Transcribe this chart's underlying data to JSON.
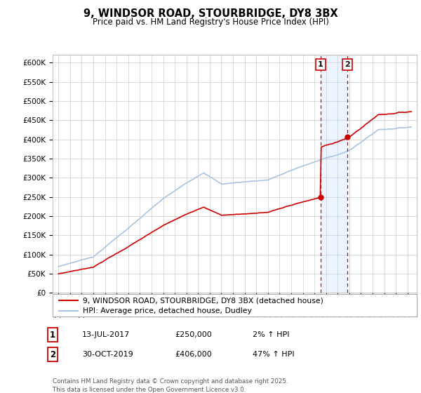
{
  "title": "9, WINDSOR ROAD, STOURBRIDGE, DY8 3BX",
  "subtitle": "Price paid vs. HM Land Registry's House Price Index (HPI)",
  "ylim": [
    0,
    620000
  ],
  "yticks": [
    0,
    50000,
    100000,
    150000,
    200000,
    250000,
    300000,
    350000,
    400000,
    450000,
    500000,
    550000,
    600000
  ],
  "ytick_labels": [
    "£0",
    "£50K",
    "£100K",
    "£150K",
    "£200K",
    "£250K",
    "£300K",
    "£350K",
    "£400K",
    "£450K",
    "£500K",
    "£550K",
    "£600K"
  ],
  "sale1_date": 2017.53,
  "sale1_price": 250000,
  "sale2_date": 2019.83,
  "sale2_price": 406000,
  "hpi_color": "#a8c4e0",
  "price_color": "#cc0000",
  "vline_color": "#cc0000",
  "highlight_bg": "#ddeeff",
  "legend_line1": "9, WINDSOR ROAD, STOURBRIDGE, DY8 3BX (detached house)",
  "legend_line2": "HPI: Average price, detached house, Dudley",
  "table_row1": [
    "1",
    "13-JUL-2017",
    "£250,000",
    "2% ↑ HPI"
  ],
  "table_row2": [
    "2",
    "30-OCT-2019",
    "£406,000",
    "47% ↑ HPI"
  ],
  "footnote": "Contains HM Land Registry data © Crown copyright and database right 2025.\nThis data is licensed under the Open Government Licence v3.0.",
  "bg_color": "#ffffff",
  "grid_color": "#cccccc"
}
